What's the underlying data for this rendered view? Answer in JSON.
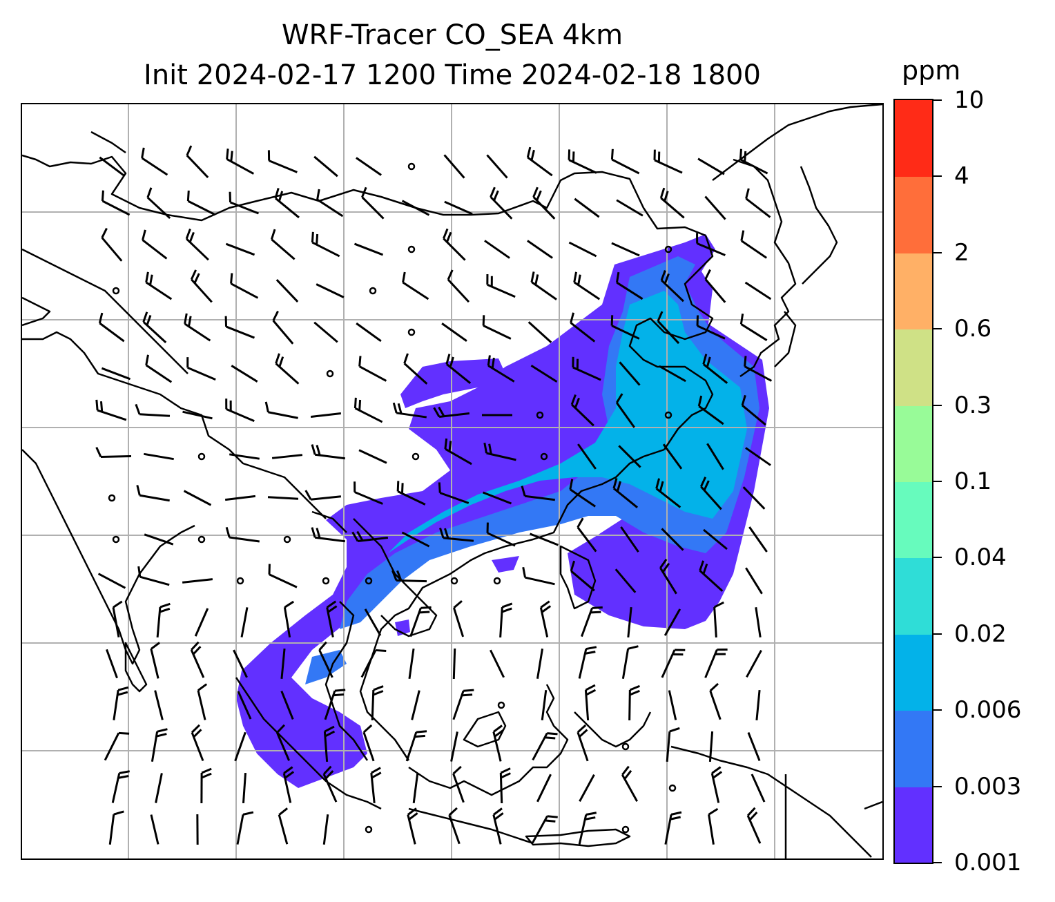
{
  "title": {
    "line1": "WRF-Tracer CO_SEA 4km",
    "line2": "Init 2024-02-17 1200 Time 2024-02-18 1800"
  },
  "colorbar": {
    "unit": "ppm",
    "levels": [
      "0.001",
      "0.003",
      "0.006",
      "0.02",
      "0.04",
      "0.1",
      "0.3",
      "0.6",
      "2",
      "4",
      "10"
    ],
    "colors": [
      "#6230ff",
      "#3378f5",
      "#03b2e9",
      "#2fddd7",
      "#67fbbd",
      "#98fb98",
      "#cfe186",
      "#ffb066",
      "#ff6e3a",
      "#ff2b17"
    ]
  },
  "map": {
    "gridlines": true,
    "features": [
      "coastlines",
      "country-borders",
      "wind-barbs",
      "co-tracer-concentration"
    ]
  }
}
